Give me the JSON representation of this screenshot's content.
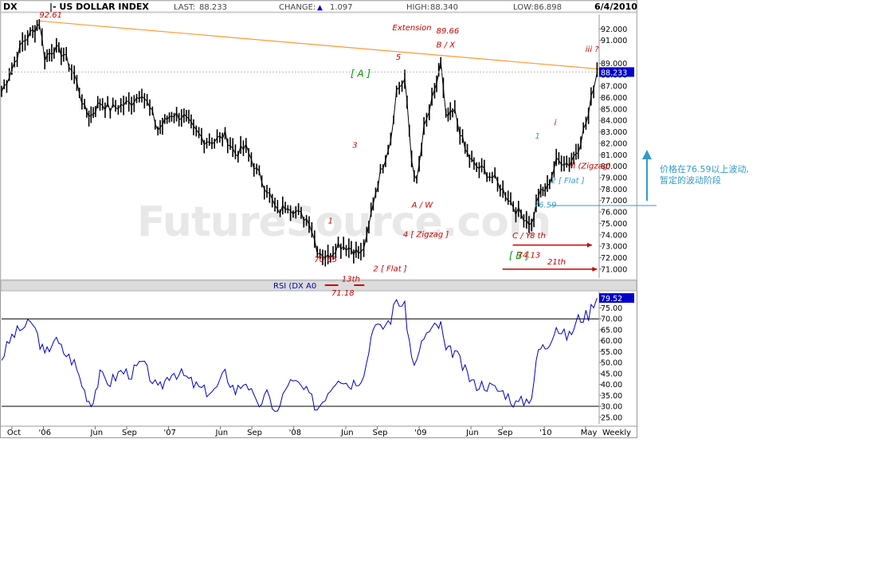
{
  "header": {
    "symbol": "DX",
    "title": "|- US DOLLAR INDEX",
    "last_label": "LAST:",
    "last_value": "88.233",
    "change_label": "CHANGE:",
    "change_arrow": "▲",
    "change_value": "1.097",
    "high_label": "HIGH:",
    "high_value": "88.340",
    "low_label": "LOW:",
    "low_value": "86.898",
    "date": "6/4/2010"
  },
  "watermark": "FutureSource.com",
  "rsi_label": "RSI (DX A0",
  "timeframe": "Weekly",
  "side_note": {
    "line1": "价格在76.59以上波动,",
    "line2": "暂定的波动阶段"
  },
  "colors": {
    "price_line": "#000000",
    "rsi_line": "#0000cc",
    "trendline": "#ff9933",
    "annotation_red": "#cc0000",
    "annotation_green": "#009900",
    "annotation_blue": "#3399cc",
    "highlight_box": "#0000cc",
    "watermark": "#e6e6e6"
  },
  "annotations": [
    {
      "text": "92.61",
      "x": "2005-12-20",
      "y": 93.0,
      "color": "red"
    },
    {
      "text": "Extension",
      "x": "2008-10-15",
      "y": 91.9,
      "color": "red"
    },
    {
      "text": "89.66",
      "x": "2009-02-20",
      "y": 91.6,
      "color": "red"
    },
    {
      "text": "B / X",
      "x": "2009-02-20",
      "y": 90.4,
      "color": "red"
    },
    {
      "text": "5",
      "x": "2008-10-25",
      "y": 89.3,
      "color": "red"
    },
    {
      "text": "[ A ]",
      "x": "2008-06-15",
      "y": 87.8,
      "color": "green"
    },
    {
      "text": "3",
      "x": "2008-06-20",
      "y": 81.6,
      "color": "red"
    },
    {
      "text": "A / W",
      "x": "2008-12-10",
      "y": 76.4,
      "color": "red"
    },
    {
      "text": "1",
      "x": "2008-04-10",
      "y": 75.0,
      "color": "red"
    },
    {
      "text": "4  [ Zigzag ]",
      "x": "2008-11-15",
      "y": 73.8,
      "color": "red"
    },
    {
      "text": "70.65",
      "x": "2008-03-01",
      "y": 71.6,
      "color": "red"
    },
    {
      "text": "2  [ Flat ]",
      "x": "2008-08-20",
      "y": 70.8,
      "color": "red"
    },
    {
      "text": "71.18",
      "x": "2008-04-20",
      "y": 68.7,
      "color": "red"
    },
    {
      "text": "13th",
      "x": "2008-05-20",
      "y": 69.9,
      "color": "red"
    },
    {
      "text": "C / Y",
      "x": "2009-09-30",
      "y": 73.7,
      "color": "red"
    },
    {
      "text": "8 th",
      "x": "2009-11-20",
      "y": 73.7,
      "color": "red"
    },
    {
      "text": "[ B ]",
      "x": "2009-09-20",
      "y": 71.9,
      "color": "green"
    },
    {
      "text": "74.13",
      "x": "2009-10-15",
      "y": 72.0,
      "color": "red"
    },
    {
      "text": "21th",
      "x": "2010-01-10",
      "y": 71.4,
      "color": "red"
    },
    {
      "text": "76.59",
      "x": "2009-12-01",
      "y": 76.4,
      "color": "blue"
    },
    {
      "text": "1",
      "x": "2009-12-05",
      "y": 82.4,
      "color": "blue"
    },
    {
      "text": "i",
      "x": "2010-01-30",
      "y": 83.6,
      "color": "red"
    },
    {
      "text": "ii  (Zigzag)",
      "x": "2010-03-20",
      "y": 79.8,
      "color": "red"
    },
    {
      "text": "2  [ Flat ]",
      "x": "2010-01-20",
      "y": 78.5,
      "color": "blue"
    },
    {
      "text": "iii   ?",
      "x": "2010-05-01",
      "y": 90.0,
      "color": "red"
    }
  ],
  "chart_data": [
    {
      "type": "line",
      "name": "US DOLLAR INDEX (weekly bars, approximate closes)",
      "ylim": [
        70.5,
        93.0
      ],
      "yticks": [
        "71.000",
        "72.000",
        "73.000",
        "74.000",
        "75.000",
        "76.000",
        "77.000",
        "78.000",
        "79.000",
        "80.000",
        "81.000",
        "82.000",
        "83.000",
        "84.000",
        "85.000",
        "86.000",
        "87.000",
        "88.000",
        "89.000",
        "91.000",
        "92.000"
      ],
      "x_ticks": [
        "Oct",
        "'06",
        "Jun",
        "Sep",
        "'07",
        "Jun",
        "Sep",
        "'08",
        "Jun",
        "Sep",
        "'09",
        "Jun",
        "Sep",
        "'10",
        "May"
      ],
      "x_tick_dates": [
        "2005-10-01",
        "2006-01-01",
        "2006-06-01",
        "2006-09-01",
        "2007-01-01",
        "2007-06-01",
        "2007-09-01",
        "2008-01-01",
        "2008-06-01",
        "2008-09-01",
        "2009-01-01",
        "2009-06-01",
        "2009-09-01",
        "2010-01-01",
        "2010-05-01"
      ],
      "x_range": [
        "2005-09-01",
        "2010-06-10"
      ],
      "last_price": "88.233",
      "points": [
        [
          "2005-09-01",
          86.5
        ],
        [
          "2005-10-01",
          88.5
        ],
        [
          "2005-11-01",
          90.8
        ],
        [
          "2005-12-01",
          91.8
        ],
        [
          "2005-12-20",
          92.6
        ],
        [
          "2006-01-05",
          89.5
        ],
        [
          "2006-02-01",
          90.3
        ],
        [
          "2006-03-01",
          89.8
        ],
        [
          "2006-04-01",
          88.0
        ],
        [
          "2006-05-01",
          85.0
        ],
        [
          "2006-05-20",
          84.4
        ],
        [
          "2006-06-15",
          85.6
        ],
        [
          "2006-07-15",
          85.0
        ],
        [
          "2006-08-15",
          85.3
        ],
        [
          "2006-09-15",
          85.6
        ],
        [
          "2006-10-15",
          86.5
        ],
        [
          "2006-11-15",
          84.5
        ],
        [
          "2006-12-01",
          83.2
        ],
        [
          "2007-01-10",
          84.6
        ],
        [
          "2007-02-15",
          84.3
        ],
        [
          "2007-03-15",
          83.2
        ],
        [
          "2007-04-15",
          82.3
        ],
        [
          "2007-05-15",
          82.2
        ],
        [
          "2007-06-15",
          82.7
        ],
        [
          "2007-07-15",
          81.1
        ],
        [
          "2007-08-15",
          81.6
        ],
        [
          "2007-09-15",
          79.6
        ],
        [
          "2007-10-15",
          78.0
        ],
        [
          "2007-11-15",
          75.9
        ],
        [
          "2007-12-15",
          76.7
        ],
        [
          "2008-01-15",
          75.8
        ],
        [
          "2008-02-15",
          75.3
        ],
        [
          "2008-03-10",
          72.7
        ],
        [
          "2008-04-10",
          72.0
        ],
        [
          "2008-05-10",
          73.2
        ],
        [
          "2008-06-10",
          72.9
        ],
        [
          "2008-07-15",
          72.3
        ],
        [
          "2008-08-01",
          73.6
        ],
        [
          "2008-08-20",
          76.9
        ],
        [
          "2008-09-10",
          79.4
        ],
        [
          "2008-10-10",
          82.4
        ],
        [
          "2008-10-27",
          86.6
        ],
        [
          "2008-11-20",
          87.6
        ],
        [
          "2008-12-10",
          80.6
        ],
        [
          "2008-12-25",
          78.5
        ],
        [
          "2009-01-15",
          83.2
        ],
        [
          "2009-02-15",
          86.4
        ],
        [
          "2009-03-05",
          89.0
        ],
        [
          "2009-03-20",
          84.2
        ],
        [
          "2009-04-15",
          84.7
        ],
        [
          "2009-05-15",
          81.4
        ],
        [
          "2009-06-10",
          80.1
        ],
        [
          "2009-07-10",
          79.6
        ],
        [
          "2009-08-10",
          78.8
        ],
        [
          "2009-09-10",
          77.6
        ],
        [
          "2009-10-10",
          76.2
        ],
        [
          "2009-11-10",
          75.4
        ],
        [
          "2009-11-25",
          74.9
        ],
        [
          "2009-12-15",
          77.5
        ],
        [
          "2010-01-10",
          78.1
        ],
        [
          "2010-02-05",
          80.4
        ],
        [
          "2010-02-20",
          80.5
        ],
        [
          "2010-03-15",
          80.2
        ],
        [
          "2010-04-10",
          81.6
        ],
        [
          "2010-05-10",
          84.5
        ],
        [
          "2010-05-25",
          87.1
        ],
        [
          "2010-06-04",
          88.2
        ]
      ]
    },
    {
      "type": "line",
      "name": "RSI",
      "ylim": [
        22.0,
        81.0
      ],
      "yticks": [
        "25.00",
        "30.00",
        "35.00",
        "40.00",
        "45.00",
        "50.00",
        "55.00",
        "60.00",
        "65.00",
        "70.00",
        "75.00"
      ],
      "reference_lines": [
        70,
        30
      ],
      "last_value": "79.52",
      "points": [
        [
          "2005-09-01",
          52
        ],
        [
          "2005-10-01",
          62
        ],
        [
          "2005-11-01",
          66
        ],
        [
          "2005-12-01",
          68
        ],
        [
          "2006-01-05",
          53
        ],
        [
          "2006-02-01",
          61
        ],
        [
          "2006-03-01",
          55
        ],
        [
          "2006-04-01",
          50
        ],
        [
          "2006-05-01",
          37
        ],
        [
          "2006-05-20",
          31
        ],
        [
          "2006-06-15",
          44
        ],
        [
          "2006-07-15",
          41
        ],
        [
          "2006-08-15",
          46
        ],
        [
          "2006-09-15",
          45
        ],
        [
          "2006-10-15",
          50
        ],
        [
          "2006-11-15",
          42
        ],
        [
          "2006-12-01",
          37
        ],
        [
          "2007-01-10",
          46
        ],
        [
          "2007-02-15",
          44
        ],
        [
          "2007-03-15",
          40
        ],
        [
          "2007-04-15",
          37
        ],
        [
          "2007-05-15",
          37
        ],
        [
          "2007-06-15",
          45
        ],
        [
          "2007-07-15",
          37
        ],
        [
          "2007-08-15",
          42
        ],
        [
          "2007-09-15",
          30
        ],
        [
          "2007-10-15",
          35
        ],
        [
          "2007-11-15",
          27
        ],
        [
          "2007-12-15",
          41
        ],
        [
          "2008-01-15",
          40
        ],
        [
          "2008-02-15",
          35
        ],
        [
          "2008-03-10",
          29
        ],
        [
          "2008-04-10",
          37
        ],
        [
          "2008-05-10",
          44
        ],
        [
          "2008-06-10",
          40
        ],
        [
          "2008-07-15",
          43
        ],
        [
          "2008-08-01",
          50
        ],
        [
          "2008-08-20",
          68
        ],
        [
          "2008-09-10",
          65
        ],
        [
          "2008-10-10",
          70
        ],
        [
          "2008-10-27",
          79
        ],
        [
          "2008-11-20",
          75
        ],
        [
          "2008-12-10",
          52
        ],
        [
          "2008-12-25",
          50
        ],
        [
          "2009-01-15",
          62
        ],
        [
          "2009-02-15",
          66
        ],
        [
          "2009-03-05",
          67
        ],
        [
          "2009-03-20",
          55
        ],
        [
          "2009-04-15",
          55
        ],
        [
          "2009-05-15",
          46
        ],
        [
          "2009-06-10",
          40
        ],
        [
          "2009-07-10",
          40
        ],
        [
          "2009-08-10",
          38
        ],
        [
          "2009-09-10",
          36
        ],
        [
          "2009-10-10",
          31
        ],
        [
          "2009-11-10",
          33
        ],
        [
          "2009-11-25",
          35
        ],
        [
          "2009-12-15",
          56
        ],
        [
          "2010-01-10",
          58
        ],
        [
          "2010-02-05",
          67
        ],
        [
          "2010-02-20",
          63
        ],
        [
          "2010-03-15",
          62
        ],
        [
          "2010-04-10",
          70
        ],
        [
          "2010-05-10",
          72
        ],
        [
          "2010-05-25",
          78
        ],
        [
          "2010-06-04",
          79.5
        ]
      ]
    }
  ]
}
